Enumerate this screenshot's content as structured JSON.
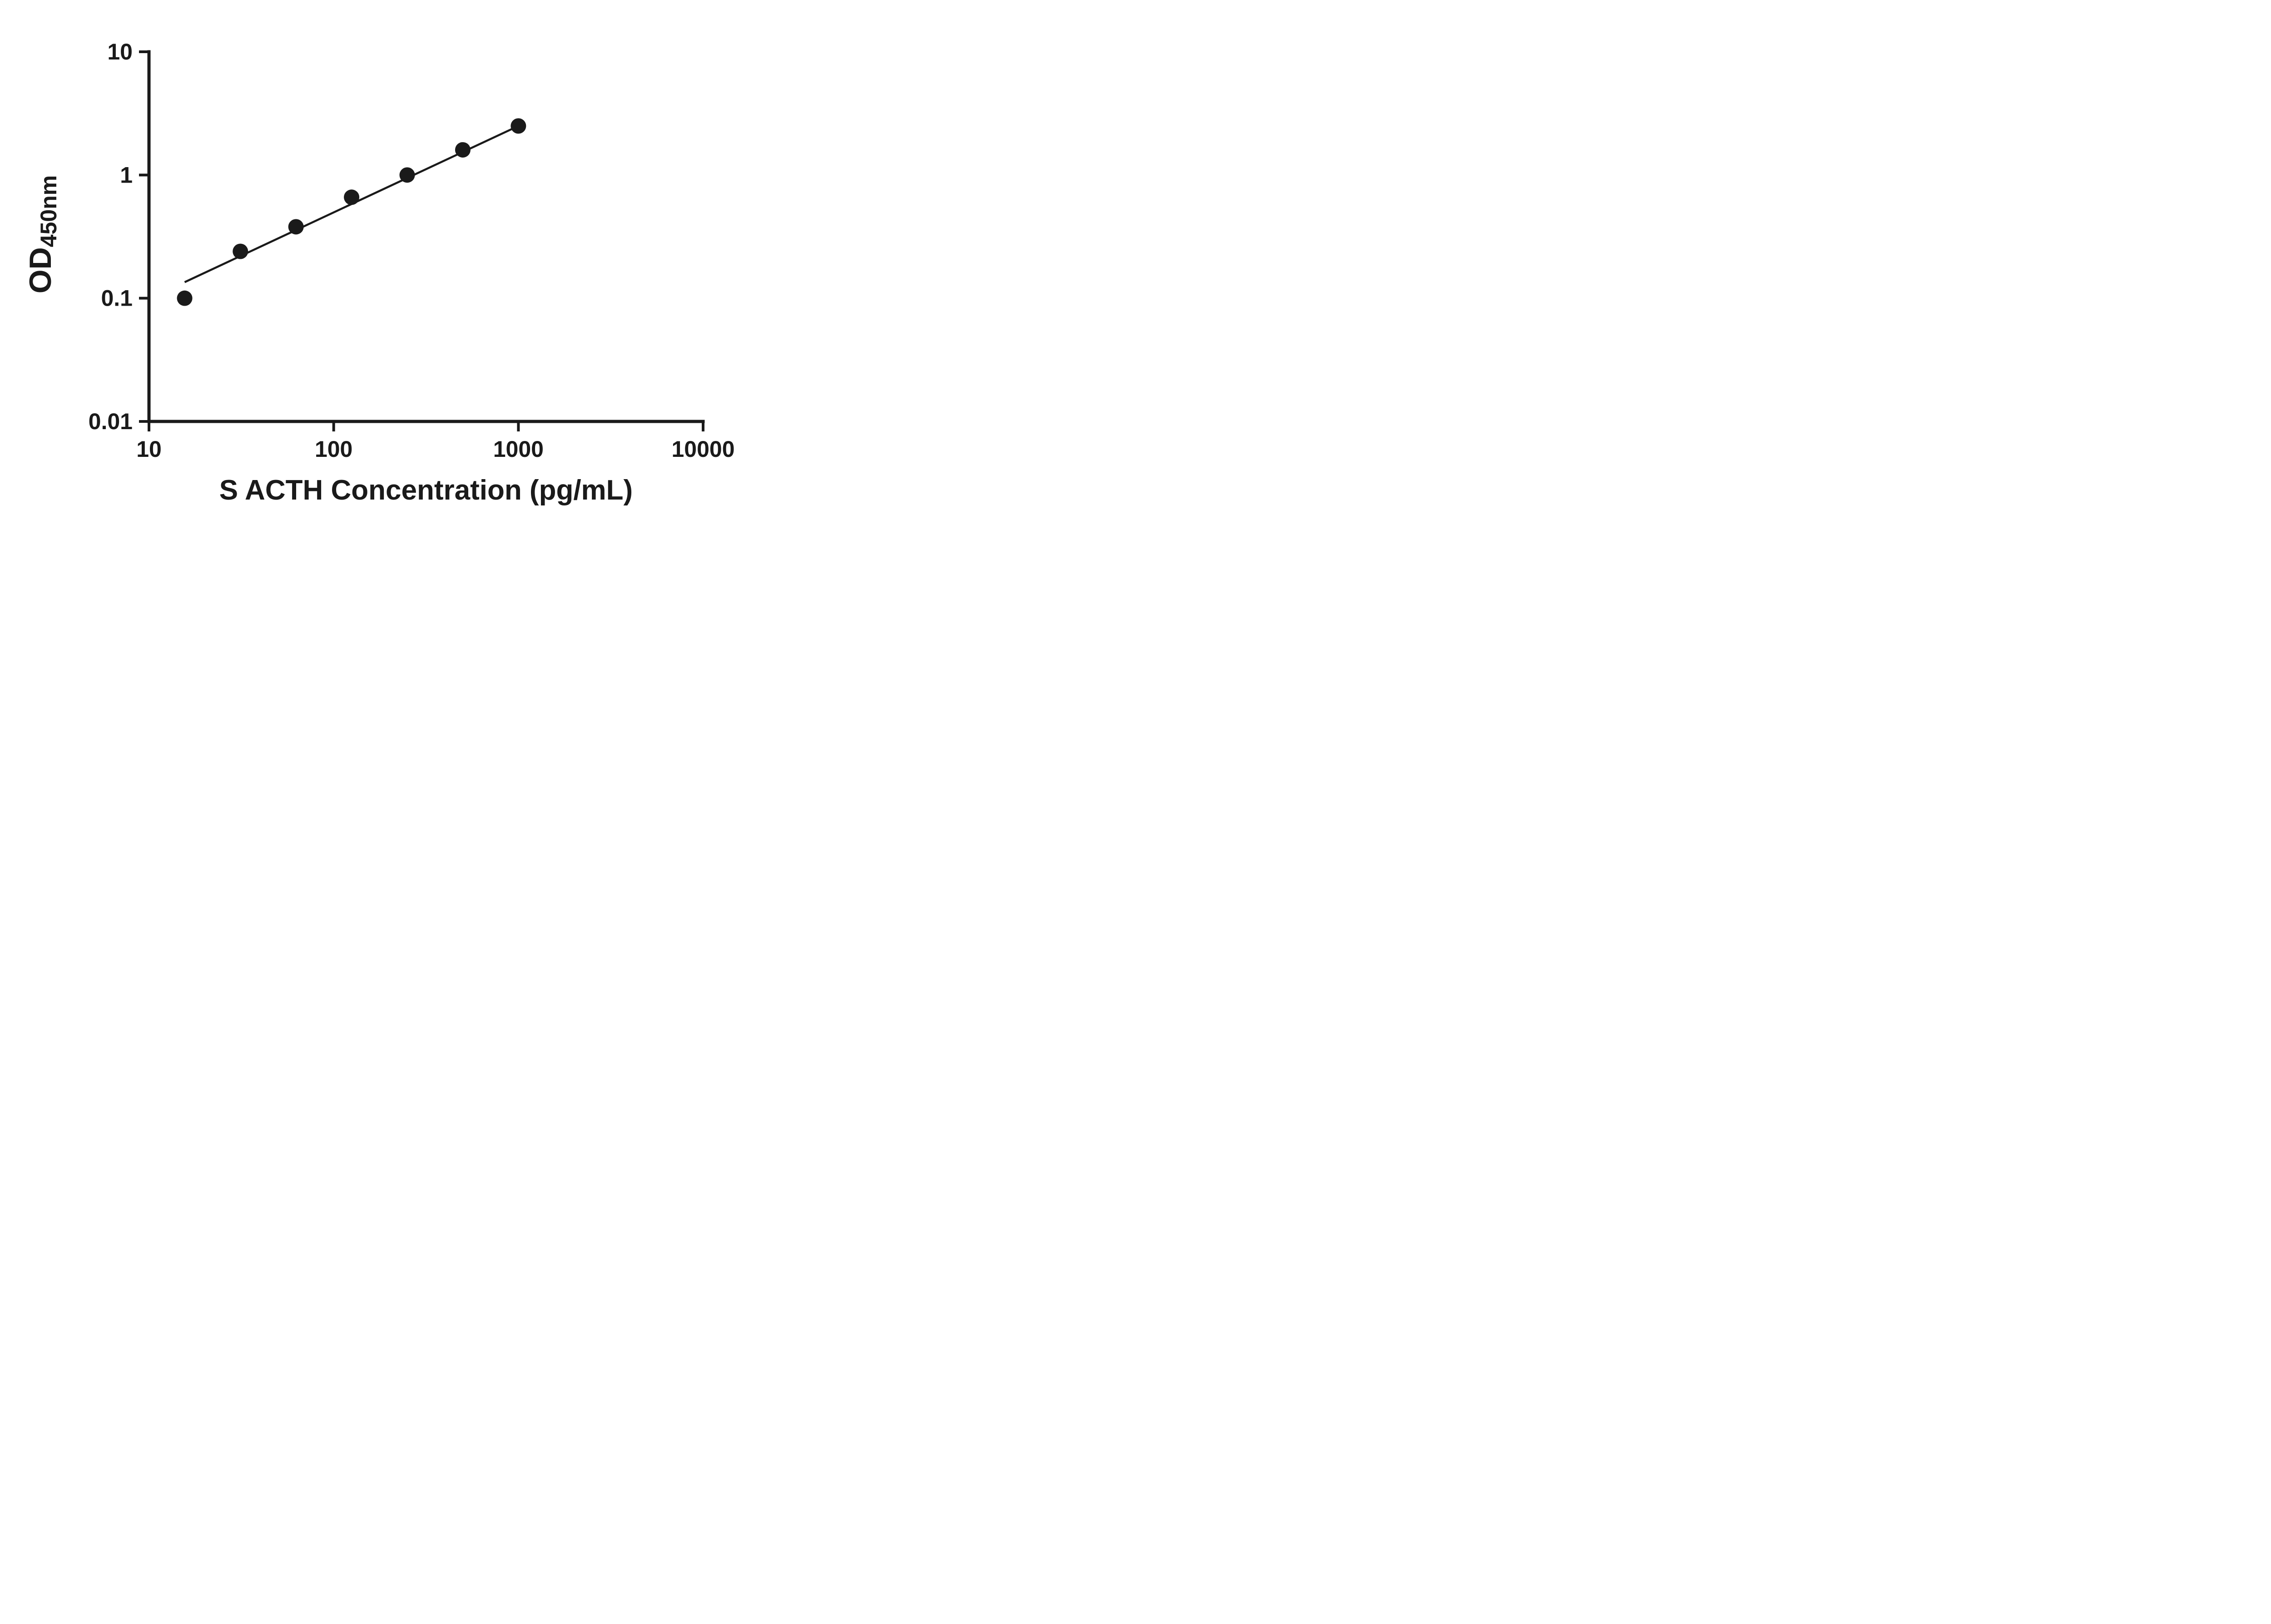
{
  "page": {
    "background": "#ffffff"
  },
  "chart_data": {
    "type": "scatter",
    "title": "",
    "xlabel": "S ACTH Concentration (pg/mL)",
    "ylabel": {
      "base": "OD",
      "subscript": "450nm"
    },
    "x_scale": "log",
    "y_scale": "log",
    "xlim": [
      10,
      10000
    ],
    "ylim": [
      0.01,
      10
    ],
    "grid": false,
    "legend": false,
    "x_ticks": [
      {
        "value": 10,
        "label": "10"
      },
      {
        "value": 100,
        "label": "100"
      },
      {
        "value": 1000,
        "label": "1000"
      },
      {
        "value": 10000,
        "label": "10000"
      }
    ],
    "y_ticks": [
      {
        "value": 0.01,
        "label": "0.01"
      },
      {
        "value": 0.1,
        "label": "0.1"
      },
      {
        "value": 1,
        "label": "1"
      },
      {
        "value": 10,
        "label": "10"
      }
    ],
    "points": [
      {
        "x": 15.6,
        "y": 0.1
      },
      {
        "x": 31.25,
        "y": 0.24
      },
      {
        "x": 62.5,
        "y": 0.38
      },
      {
        "x": 125,
        "y": 0.66
      },
      {
        "x": 250,
        "y": 1.0
      },
      {
        "x": 500,
        "y": 1.6
      },
      {
        "x": 1000,
        "y": 2.5
      }
    ],
    "fit_line": {
      "x_start": 15.6,
      "y_start": 0.135,
      "x_end": 1000,
      "y_end": 2.5
    },
    "colors": {
      "axis": "#1a1a1a",
      "marker": "#1a1a1a",
      "line": "#1a1a1a"
    }
  }
}
